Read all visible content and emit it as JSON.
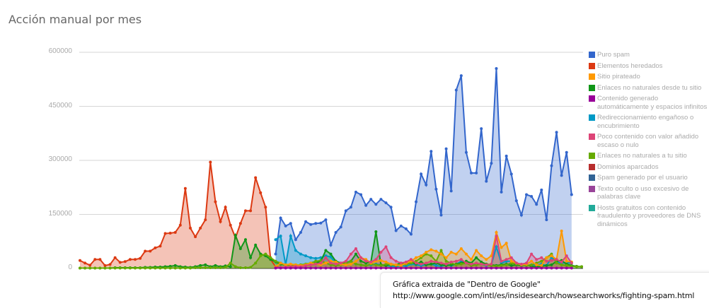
{
  "title": "Acción manual por mes",
  "note": {
    "line1": "Gráfica extraida de \"Dentro de Google\"",
    "line2": "http://www.google.com/intl/es/insidesearch/howsearchworks/fighting-spam.html"
  },
  "y_ticks": [
    "600000",
    "450000",
    "300000",
    "150000",
    "0"
  ],
  "legend": [
    {
      "label": "Puro spam",
      "color": "#3366cc"
    },
    {
      "label": "Elementos heredados",
      "color": "#dc3912"
    },
    {
      "label": "Sitio pirateado",
      "color": "#ff9900"
    },
    {
      "label": "Enlaces no naturales desde tu sitio",
      "color": "#109618"
    },
    {
      "label": "Contenido generado automáticamente y espacios infinitos",
      "color": "#990099"
    },
    {
      "label": "Redireccionamiento engañoso o encubrimiento",
      "color": "#0099c6"
    },
    {
      "label": "Poco contenido con valor añadido escaso o nulo",
      "color": "#dd4477"
    },
    {
      "label": "Enlaces no naturales a tu sitio",
      "color": "#66aa00"
    },
    {
      "label": "Dominios aparcados",
      "color": "#b82e2e"
    },
    {
      "label": "Spam generado por el usuario",
      "color": "#316395"
    },
    {
      "label": "Texto oculto o uso excesivo de palabras clave",
      "color": "#994499"
    },
    {
      "label": "Hosts gratuitos con contenido fraudulento y proveedores de DNS dinámicos",
      "color": "#22aa99"
    }
  ],
  "chart_data": {
    "type": "area",
    "title": "Acción manual por mes",
    "xlabel": "",
    "ylabel": "",
    "ylim": [
      0,
      600000
    ],
    "y_ticks": [
      0,
      150000,
      300000,
      450000,
      600000
    ],
    "grid": true,
    "legend_position": "right",
    "x_count": 101,
    "series": [
      {
        "name": "Elementos heredados",
        "color": "#dc3912",
        "start": 0,
        "values": [
          22000,
          15000,
          9000,
          25000,
          25000,
          8000,
          11000,
          30000,
          17000,
          19000,
          25000,
          25000,
          28000,
          48000,
          48000,
          57000,
          62000,
          97000,
          98000,
          100000,
          120000,
          222000,
          112000,
          88000,
          112000,
          135000,
          295000,
          185000,
          130000,
          170000,
          120000,
          85000,
          125000,
          160000,
          160000,
          252000,
          210000,
          170000,
          25000,
          5000,
          2000
        ]
      },
      {
        "name": "Puro spam",
        "color": "#3366cc",
        "start": 39,
        "values": [
          40000,
          140000,
          118000,
          125000,
          80000,
          100000,
          130000,
          122000,
          125000,
          126000,
          135000,
          65000,
          100000,
          115000,
          160000,
          170000,
          212000,
          205000,
          175000,
          192000,
          178000,
          192000,
          182000,
          170000,
          105000,
          118000,
          110000,
          95000,
          185000,
          262000,
          232000,
          325000,
          220000,
          148000,
          332000,
          215000,
          495000,
          535000,
          322000,
          265000,
          265000,
          388000,
          242000,
          292000,
          555000,
          212000,
          312000,
          262000,
          188000,
          148000,
          205000,
          200000,
          178000,
          218000,
          135000,
          285000,
          378000,
          258000,
          322000,
          205000
        ]
      },
      {
        "name": "Redireccionamiento engañoso o encubrimiento",
        "color": "#0099c6",
        "start": 39,
        "values": [
          80000,
          90000,
          10000,
          90000,
          50000,
          40000,
          35000,
          30000,
          28000,
          30000,
          35000,
          32000,
          15000,
          15000,
          18000,
          20000,
          12000,
          10000,
          8000,
          10000,
          12000,
          10000,
          8000,
          6000,
          5000,
          8000,
          6000,
          12000,
          10000,
          8000,
          10000,
          12000,
          8000,
          6000,
          10000,
          8000,
          12000,
          20000,
          15000,
          10000,
          12000,
          12000,
          8000,
          10000,
          60000,
          15000,
          20000,
          20000,
          10000,
          8000,
          8000,
          10000,
          10000,
          12000,
          8000,
          30000,
          18000,
          15000,
          16000,
          15000
        ]
      },
      {
        "name": "Enlaces no naturales desde tu sitio",
        "color": "#109618",
        "start": 0,
        "values": [
          1000,
          1000,
          1000,
          1000,
          1000,
          1000,
          1000,
          2000,
          2000,
          2000,
          2000,
          2000,
          2000,
          3000,
          3000,
          4000,
          4000,
          5000,
          6000,
          8000,
          5000,
          4000,
          3000,
          5000,
          8000,
          10000,
          5000,
          8000,
          5000,
          7000,
          5000,
          92000,
          55000,
          80000,
          30000,
          65000,
          40000,
          35000,
          25000,
          18000,
          12000,
          10000,
          8000,
          10000,
          8000,
          10000,
          12000,
          15000,
          20000,
          50000,
          40000,
          20000,
          15000,
          15000,
          20000,
          40000,
          20000,
          15000,
          18000,
          102000,
          10000,
          8000,
          12000,
          10000,
          15000,
          12000,
          18000,
          12000,
          18000,
          10000,
          12000,
          15000,
          10000,
          8000,
          10000,
          12000,
          15000,
          20000,
          15000,
          30000,
          18000,
          12000,
          10000,
          8000,
          10000,
          12000,
          8000,
          10000,
          8000,
          10000,
          6000,
          5000,
          6000,
          8000,
          10000,
          20000,
          22000,
          12000,
          8000,
          6000,
          5000
        ]
      },
      {
        "name": "Enlaces no naturales a tu sitio",
        "color": "#66aa00",
        "start": 0,
        "values": [
          1000,
          1000,
          1000,
          1000,
          1000,
          1000,
          1000,
          1000,
          1000,
          1000,
          1000,
          1000,
          1000,
          1000,
          1000,
          1000,
          1000,
          1000,
          1000,
          1000,
          1000,
          1000,
          1000,
          2000,
          2000,
          2000,
          2000,
          2000,
          2000,
          3000,
          15000,
          5000,
          2000,
          2000,
          3000,
          15000,
          35000,
          40000,
          30000,
          20000,
          15000,
          10000,
          8000,
          8000,
          10000,
          12000,
          15000,
          20000,
          22000,
          15000,
          10000,
          8000,
          10000,
          15000,
          20000,
          12000,
          10000,
          8000,
          12000,
          10000,
          8000,
          12000,
          10000,
          8000,
          10000,
          12000,
          15000,
          20000,
          30000,
          40000,
          35000,
          20000,
          50000,
          20000,
          15000,
          10000,
          12000,
          15000,
          8000,
          10000,
          12000,
          10000,
          8000,
          6000,
          8000,
          10000,
          15000,
          12000,
          10000,
          8000,
          10000,
          15000,
          20000,
          30000,
          40000,
          15000,
          10000,
          8000,
          6000,
          5000,
          5000
        ]
      },
      {
        "name": "Sitio pirateado",
        "color": "#ff9900",
        "start": 39,
        "values": [
          5000,
          15000,
          10000,
          12000,
          10000,
          8000,
          10000,
          15000,
          12000,
          10000,
          15000,
          20000,
          18000,
          12000,
          10000,
          12000,
          20000,
          30000,
          25000,
          15000,
          20000,
          22000,
          18000,
          12000,
          10000,
          8000,
          15000,
          20000,
          30000,
          35000,
          45000,
          52000,
          48000,
          40000,
          30000,
          45000,
          40000,
          55000,
          40000,
          25000,
          50000,
          35000,
          25000,
          35000,
          100000,
          58000,
          70000,
          20000,
          15000,
          10000,
          12000,
          20000,
          10000,
          8000,
          30000,
          35000,
          25000,
          104000,
          20000,
          18000
        ]
      },
      {
        "name": "Poco contenido con valor añadido escaso o nulo",
        "color": "#dd4477",
        "start": 39,
        "values": [
          2000,
          3000,
          4000,
          5000,
          6000,
          5000,
          8000,
          10000,
          12000,
          15000,
          30000,
          15000,
          12000,
          15000,
          20000,
          40000,
          55000,
          30000,
          20000,
          18000,
          25000,
          45000,
          60000,
          30000,
          20000,
          15000,
          18000,
          25000,
          15000,
          12000,
          15000,
          20000,
          18000,
          15000,
          12000,
          18000,
          20000,
          25000,
          15000,
          12000,
          15000,
          12000,
          10000,
          12000,
          90000,
          20000,
          25000,
          30000,
          15000,
          12000,
          15000,
          40000,
          25000,
          30000,
          20000,
          22000,
          25000,
          18000,
          35000,
          15000
        ]
      },
      {
        "name": "Contenido generado automáticamente y espacios infinitos",
        "color": "#990099",
        "start": 39,
        "values": [
          1000,
          1000,
          1000,
          1000,
          1000,
          1000,
          1000,
          1000,
          1000,
          1000,
          1000,
          1000,
          1000,
          1000,
          1000,
          1000,
          1000,
          1000,
          1000,
          1000,
          1000,
          1000,
          1000,
          1000,
          1000,
          1000,
          1000,
          1000,
          1000,
          1000,
          1000,
          1000,
          1000,
          1000,
          1000,
          1000,
          1000,
          1000,
          1000,
          1000,
          1000,
          1000,
          1000,
          1000,
          1000,
          1000,
          1000,
          1000,
          1000,
          1000,
          1000,
          1000,
          1000,
          1000,
          1000,
          1000,
          1000,
          1000,
          1000,
          1000
        ]
      }
    ]
  }
}
